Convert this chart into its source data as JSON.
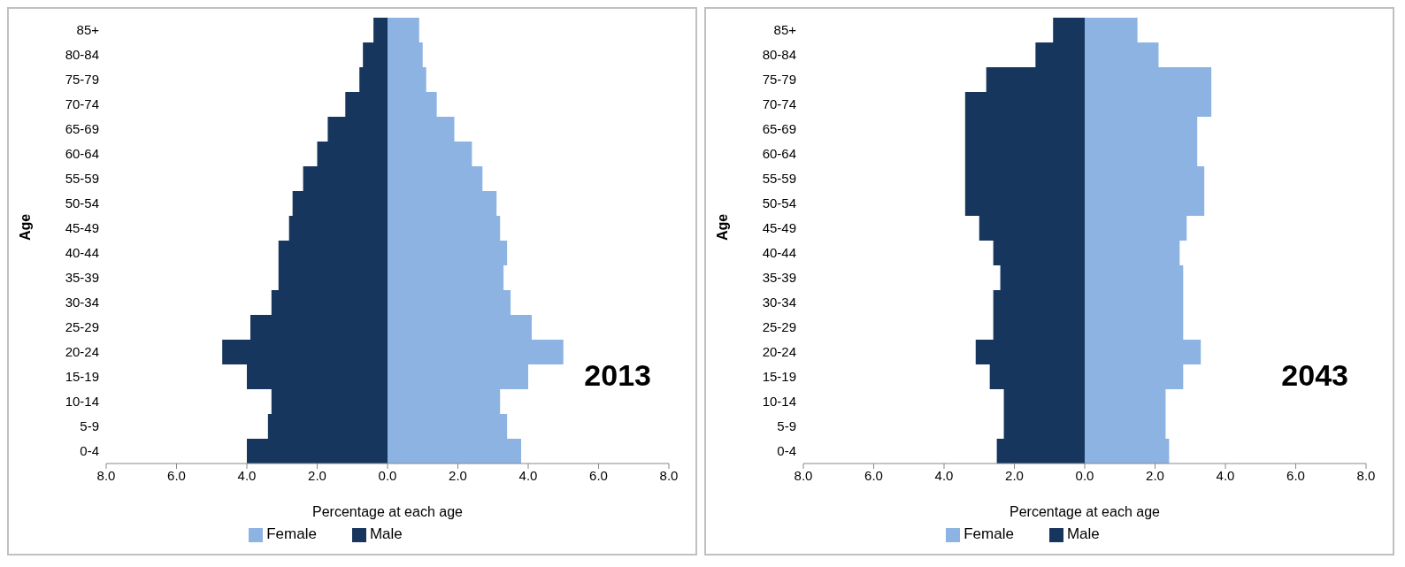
{
  "chart_data": [
    {
      "type": "bar",
      "orientation": "horizontal",
      "stacked": true,
      "categories": [
        "85+",
        "80-84",
        "75-79",
        "70-74",
        "65-69",
        "60-64",
        "55-59",
        "50-54",
        "45-49",
        "40-44",
        "35-39",
        "30-34",
        "25-29",
        "20-24",
        "15-19",
        "10-14",
        "5-9",
        "0-4"
      ],
      "ylabel": "Age",
      "xlabel": "Percentage at each age",
      "annotations": [
        "2013"
      ],
      "xlim": [
        -8,
        8
      ],
      "xticks": [
        {
          "value": -8,
          "label": "8.0"
        },
        {
          "value": -6,
          "label": "6.0"
        },
        {
          "value": -4,
          "label": "4.0"
        },
        {
          "value": -2,
          "label": "2.0"
        },
        {
          "value": 0,
          "label": "0.0"
        },
        {
          "value": 2,
          "label": "2.0"
        },
        {
          "value": 4,
          "label": "4.0"
        },
        {
          "value": 6,
          "label": "6.0"
        },
        {
          "value": 8,
          "label": "8.0"
        }
      ],
      "grid": false,
      "legend": "bottom",
      "series": [
        {
          "name": "Male",
          "color": "#17365d",
          "values": [
            -0.4,
            -0.7,
            -0.8,
            -1.2,
            -1.7,
            -2.0,
            -2.4,
            -2.7,
            -2.8,
            -3.1,
            -3.1,
            -3.3,
            -3.9,
            -4.7,
            -4.0,
            -3.3,
            -3.4,
            -4.0
          ]
        },
        {
          "name": "Female",
          "color": "#8db3e2",
          "values": [
            0.9,
            1.0,
            1.1,
            1.4,
            1.9,
            2.4,
            2.7,
            3.1,
            3.2,
            3.4,
            3.3,
            3.5,
            4.1,
            5.0,
            4.0,
            3.2,
            3.4,
            3.8
          ]
        }
      ]
    },
    {
      "type": "bar",
      "orientation": "horizontal",
      "stacked": true,
      "categories": [
        "85+",
        "80-84",
        "75-79",
        "70-74",
        "65-69",
        "60-64",
        "55-59",
        "50-54",
        "45-49",
        "40-44",
        "35-39",
        "30-34",
        "25-29",
        "20-24",
        "15-19",
        "10-14",
        "5-9",
        "0-4"
      ],
      "ylabel": "Age",
      "xlabel": "Percentage at each age",
      "annotations": [
        "2043"
      ],
      "xlim": [
        -8,
        8
      ],
      "xticks": [
        {
          "value": -8,
          "label": "8.0"
        },
        {
          "value": -6,
          "label": "6.0"
        },
        {
          "value": -4,
          "label": "4.0"
        },
        {
          "value": -2,
          "label": "2.0"
        },
        {
          "value": 0,
          "label": "0.0"
        },
        {
          "value": 2,
          "label": "2.0"
        },
        {
          "value": 4,
          "label": "4.0"
        },
        {
          "value": 6,
          "label": "6.0"
        },
        {
          "value": 8,
          "label": "8.0"
        }
      ],
      "grid": false,
      "legend": "bottom",
      "series": [
        {
          "name": "Male",
          "color": "#17365d",
          "values": [
            -0.9,
            -1.4,
            -2.8,
            -3.4,
            -3.4,
            -3.4,
            -3.4,
            -3.4,
            -3.0,
            -2.6,
            -2.4,
            -2.6,
            -2.6,
            -3.1,
            -2.7,
            -2.3,
            -2.3,
            -2.5
          ]
        },
        {
          "name": "Female",
          "color": "#8db3e2",
          "values": [
            1.5,
            2.1,
            3.6,
            3.6,
            3.2,
            3.2,
            3.4,
            3.4,
            2.9,
            2.7,
            2.8,
            2.8,
            2.8,
            3.3,
            2.8,
            2.3,
            2.3,
            2.4
          ]
        }
      ]
    }
  ]
}
